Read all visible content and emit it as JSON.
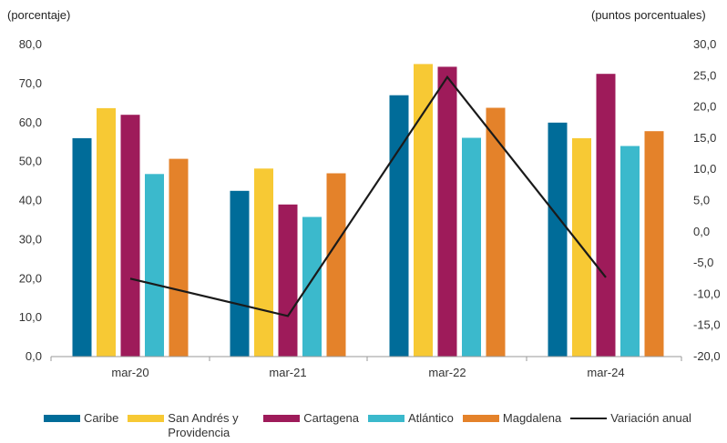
{
  "chart_data": {
    "type": "bar",
    "title": "",
    "left_axis_label": "(porcentaje)",
    "right_axis_label": "(puntos porcentuales)",
    "categories": [
      "mar-20",
      "mar-21",
      "mar-22",
      "mar-24"
    ],
    "left_ylim": [
      0,
      80
    ],
    "left_ticks": [
      "0,0",
      "10,0",
      "20,0",
      "30,0",
      "40,0",
      "50,0",
      "60,0",
      "70,0",
      "80,0"
    ],
    "right_ylim": [
      -20,
      30
    ],
    "right_ticks": [
      "-20,0",
      "-15,0",
      "-10,0",
      "-5,0",
      "0,0",
      "5,0",
      "10,0",
      "15,0",
      "20,0",
      "25,0",
      "30,0"
    ],
    "grid": false,
    "legend_position": "bottom",
    "series": [
      {
        "name": "Caribe",
        "color": "#006c99",
        "axis": "left",
        "values": [
          56.0,
          42.5,
          67.0,
          60.0
        ]
      },
      {
        "name": "San Andrés y Providencia",
        "color": "#f7c934",
        "axis": "left",
        "values": [
          63.7,
          48.2,
          75.0,
          56.0
        ]
      },
      {
        "name": "Cartagena",
        "color": "#9e1b5a",
        "axis": "left",
        "values": [
          62.0,
          39.0,
          74.3,
          72.5
        ]
      },
      {
        "name": "Atlántico",
        "color": "#3bb9cc",
        "axis": "left",
        "values": [
          46.8,
          35.8,
          56.1,
          54.0
        ]
      },
      {
        "name": "Magdalena",
        "color": "#e4822a",
        "axis": "left",
        "values": [
          50.7,
          47.0,
          63.8,
          57.8
        ]
      },
      {
        "name": "Variación anual",
        "color": "#1a1a1a",
        "axis": "right",
        "type": "line",
        "values": [
          -7.5,
          -13.5,
          24.8,
          -7.3
        ]
      }
    ]
  }
}
